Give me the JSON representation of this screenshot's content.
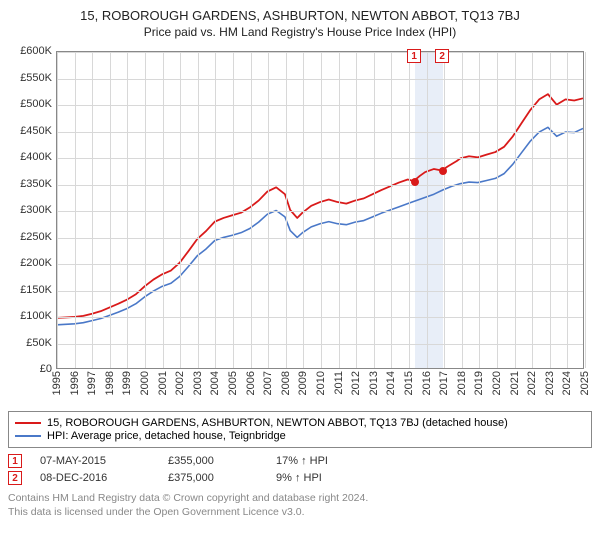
{
  "title": {
    "line1": "15, ROBOROUGH GARDENS, ASHBURTON, NEWTON ABBOT, TQ13 7BJ",
    "line2": "Price paid vs. HM Land Registry's House Price Index (HPI)"
  },
  "chart": {
    "type": "line",
    "plot_bg": "#ffffff",
    "grid_color": "#d8d8d8",
    "axis_color": "#888888",
    "ylim": [
      0,
      600000
    ],
    "ytick_step": 50000,
    "y_tick_labels": [
      "£0",
      "£50K",
      "£100K",
      "£150K",
      "£200K",
      "£250K",
      "£300K",
      "£350K",
      "£400K",
      "£450K",
      "£500K",
      "£550K",
      "£600K"
    ],
    "x_years": [
      1995,
      1996,
      1997,
      1998,
      1999,
      2000,
      2001,
      2002,
      2003,
      2004,
      2005,
      2006,
      2007,
      2008,
      2009,
      2010,
      2011,
      2012,
      2013,
      2014,
      2015,
      2016,
      2017,
      2018,
      2019,
      2020,
      2021,
      2022,
      2023,
      2024,
      2025
    ],
    "series": [
      {
        "key": "price_paid",
        "label": "15, ROBOROUGH GARDENS, ASHBURTON, NEWTON ABBOT, TQ13 7BJ (detached house)",
        "color": "#d91a1a",
        "line_width": 1.8,
        "data": [
          [
            1995.0,
            95000
          ],
          [
            1995.5,
            96000
          ],
          [
            1996.0,
            97000
          ],
          [
            1996.5,
            99000
          ],
          [
            1997.0,
            103000
          ],
          [
            1997.5,
            108000
          ],
          [
            1998.0,
            115000
          ],
          [
            1998.5,
            122000
          ],
          [
            1999.0,
            130000
          ],
          [
            1999.5,
            140000
          ],
          [
            2000.0,
            155000
          ],
          [
            2000.5,
            168000
          ],
          [
            2001.0,
            178000
          ],
          [
            2001.5,
            185000
          ],
          [
            2002.0,
            200000
          ],
          [
            2002.5,
            222000
          ],
          [
            2003.0,
            245000
          ],
          [
            2003.5,
            260000
          ],
          [
            2004.0,
            278000
          ],
          [
            2004.5,
            285000
          ],
          [
            2005.0,
            290000
          ],
          [
            2005.5,
            295000
          ],
          [
            2006.0,
            305000
          ],
          [
            2006.5,
            318000
          ],
          [
            2007.0,
            335000
          ],
          [
            2007.5,
            343000
          ],
          [
            2008.0,
            330000
          ],
          [
            2008.3,
            300000
          ],
          [
            2008.7,
            285000
          ],
          [
            2009.0,
            295000
          ],
          [
            2009.5,
            308000
          ],
          [
            2010.0,
            315000
          ],
          [
            2010.5,
            320000
          ],
          [
            2011.0,
            315000
          ],
          [
            2011.5,
            312000
          ],
          [
            2012.0,
            318000
          ],
          [
            2012.5,
            322000
          ],
          [
            2013.0,
            330000
          ],
          [
            2013.5,
            338000
          ],
          [
            2014.0,
            345000
          ],
          [
            2014.5,
            352000
          ],
          [
            2015.0,
            358000
          ],
          [
            2015.35,
            355000
          ],
          [
            2015.7,
            365000
          ],
          [
            2016.0,
            372000
          ],
          [
            2016.5,
            378000
          ],
          [
            2016.94,
            375000
          ],
          [
            2017.3,
            383000
          ],
          [
            2017.8,
            393000
          ],
          [
            2018.0,
            398000
          ],
          [
            2018.5,
            402000
          ],
          [
            2019.0,
            400000
          ],
          [
            2019.5,
            405000
          ],
          [
            2020.0,
            410000
          ],
          [
            2020.5,
            420000
          ],
          [
            2021.0,
            440000
          ],
          [
            2021.5,
            465000
          ],
          [
            2022.0,
            490000
          ],
          [
            2022.5,
            510000
          ],
          [
            2023.0,
            520000
          ],
          [
            2023.5,
            500000
          ],
          [
            2024.0,
            510000
          ],
          [
            2024.5,
            508000
          ],
          [
            2025.0,
            512000
          ]
        ]
      },
      {
        "key": "hpi",
        "label": "HPI: Average price, detached house, Teignbridge",
        "color": "#4a78c8",
        "line_width": 1.6,
        "data": [
          [
            1995.0,
            82000
          ],
          [
            1995.5,
            83000
          ],
          [
            1996.0,
            84000
          ],
          [
            1996.5,
            86000
          ],
          [
            1997.0,
            90000
          ],
          [
            1997.5,
            94000
          ],
          [
            1998.0,
            100000
          ],
          [
            1998.5,
            106000
          ],
          [
            1999.0,
            113000
          ],
          [
            1999.5,
            122000
          ],
          [
            2000.0,
            135000
          ],
          [
            2000.5,
            146000
          ],
          [
            2001.0,
            155000
          ],
          [
            2001.5,
            161000
          ],
          [
            2002.0,
            174000
          ],
          [
            2002.5,
            193000
          ],
          [
            2003.0,
            213000
          ],
          [
            2003.5,
            226000
          ],
          [
            2004.0,
            242000
          ],
          [
            2004.5,
            248000
          ],
          [
            2005.0,
            252000
          ],
          [
            2005.5,
            257000
          ],
          [
            2006.0,
            265000
          ],
          [
            2006.5,
            277000
          ],
          [
            2007.0,
            292000
          ],
          [
            2007.5,
            299000
          ],
          [
            2008.0,
            287000
          ],
          [
            2008.3,
            261000
          ],
          [
            2008.7,
            248000
          ],
          [
            2009.0,
            257000
          ],
          [
            2009.5,
            268000
          ],
          [
            2010.0,
            274000
          ],
          [
            2010.5,
            278000
          ],
          [
            2011.0,
            274000
          ],
          [
            2011.5,
            272000
          ],
          [
            2012.0,
            277000
          ],
          [
            2012.5,
            280000
          ],
          [
            2013.0,
            287000
          ],
          [
            2013.5,
            294000
          ],
          [
            2014.0,
            300000
          ],
          [
            2014.5,
            306000
          ],
          [
            2015.0,
            312000
          ],
          [
            2015.5,
            318000
          ],
          [
            2016.0,
            324000
          ],
          [
            2016.5,
            330000
          ],
          [
            2017.0,
            338000
          ],
          [
            2017.5,
            345000
          ],
          [
            2018.0,
            350000
          ],
          [
            2018.5,
            353000
          ],
          [
            2019.0,
            352000
          ],
          [
            2019.5,
            356000
          ],
          [
            2020.0,
            360000
          ],
          [
            2020.5,
            369000
          ],
          [
            2021.0,
            387000
          ],
          [
            2021.5,
            409000
          ],
          [
            2022.0,
            431000
          ],
          [
            2022.5,
            448000
          ],
          [
            2023.0,
            457000
          ],
          [
            2023.5,
            440000
          ],
          [
            2024.0,
            448000
          ],
          [
            2024.5,
            447000
          ],
          [
            2025.0,
            455000
          ]
        ]
      }
    ],
    "sale_markers": [
      {
        "n": "1",
        "year": 2015.35,
        "price": 355000,
        "color": "#d91a1a"
      },
      {
        "n": "2",
        "year": 2016.94,
        "price": 375000,
        "color": "#d91a1a"
      }
    ],
    "marker_band_color": "#e8eef8",
    "marker_dot_color": "#d91a1a"
  },
  "legend": {
    "border_color": "#888888"
  },
  "sales": [
    {
      "n": "1",
      "date": "07-MAY-2015",
      "price": "£355,000",
      "hpi": "17% ↑ HPI",
      "color": "#d91a1a"
    },
    {
      "n": "2",
      "date": "08-DEC-2016",
      "price": "£375,000",
      "hpi": "9% ↑ HPI",
      "color": "#d91a1a"
    }
  ],
  "attribution": {
    "line1": "Contains HM Land Registry data © Crown copyright and database right 2024.",
    "line2": "This data is licensed under the Open Government Licence v3.0."
  }
}
